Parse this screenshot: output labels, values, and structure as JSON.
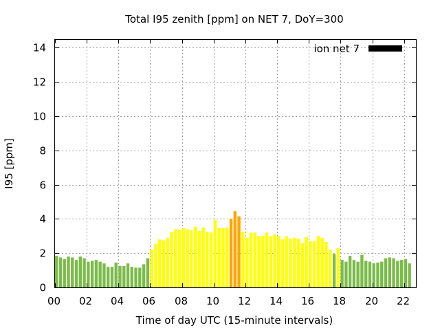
{
  "chart_data": {
    "type": "bar",
    "title": "Total I95 zenith [ppm] on NET 7, DoY=300",
    "xlabel": "Time of day UTC (15-minute intervals)",
    "ylabel": "I95 [ppm]",
    "xlim": [
      0,
      22.75
    ],
    "ylim": [
      0,
      14.5
    ],
    "x_ticks": [
      "00",
      "02",
      "04",
      "06",
      "08",
      "10",
      "12",
      "14",
      "16",
      "18",
      "20",
      "22"
    ],
    "y_ticks": [
      "0",
      "2",
      "4",
      "6",
      "8",
      "10",
      "12",
      "14"
    ],
    "grid": true,
    "legend": {
      "label": "ion net 7",
      "position": "top-right",
      "color": "#000000"
    },
    "colors": {
      "low": "#7cbb4a",
      "mid": "#ffff00",
      "high": "#ffa500"
    },
    "series": [
      {
        "x_start_hours": 0,
        "interval_hours": 0.25,
        "values": [
          1.85,
          1.75,
          1.65,
          1.8,
          1.75,
          1.6,
          1.8,
          1.7,
          1.5,
          1.55,
          1.6,
          1.5,
          1.4,
          1.2,
          1.2,
          1.45,
          1.25,
          1.25,
          1.4,
          1.2,
          1.15,
          1.15,
          1.35,
          1.7,
          2.2,
          2.55,
          2.8,
          2.75,
          2.9,
          3.25,
          3.4,
          3.35,
          3.45,
          3.4,
          3.35,
          3.55,
          3.3,
          3.5,
          3.25,
          3.2,
          3.95,
          3.45,
          3.45,
          3.5,
          4.0,
          4.45,
          4.15,
          3.25,
          2.9,
          3.2,
          3.2,
          3.0,
          3.0,
          3.2,
          3.0,
          3.1,
          3.0,
          2.8,
          3.0,
          2.85,
          2.9,
          2.85,
          2.6,
          2.95,
          2.7,
          2.7,
          3.0,
          2.9,
          2.65,
          2.2,
          1.95,
          2.3,
          1.6,
          1.5,
          1.85,
          1.6,
          1.5,
          1.9,
          1.55,
          1.5,
          1.4,
          1.45,
          1.5,
          1.7,
          1.75,
          1.7,
          1.55,
          1.6,
          1.65,
          1.4
        ]
      }
    ]
  }
}
